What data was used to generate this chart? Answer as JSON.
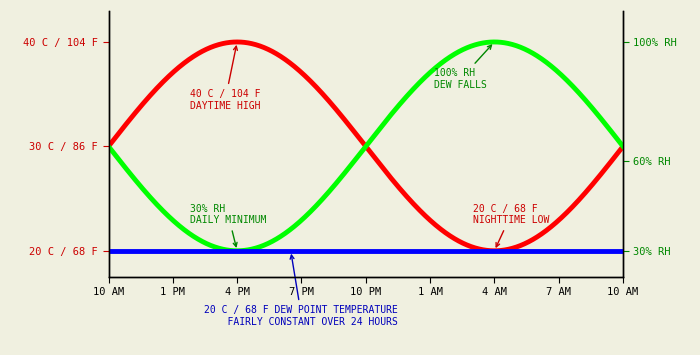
{
  "background_color": "#f0f0e0",
  "plot_bg_color": "#f0f0e0",
  "x_ticks_labels": [
    "10 AM",
    "1 PM",
    "4 PM",
    "7 PM",
    "10 PM",
    "1 AM",
    "4 AM",
    "7 AM",
    "10 AM"
  ],
  "left_yticks_labels": [
    "20 C / 68 F",
    "30 C / 86 F",
    "40 C / 104 F"
  ],
  "left_ytick_values": [
    20,
    30,
    40
  ],
  "right_yticks_labels": [
    "30% RH",
    "60% RH",
    "100% RH"
  ],
  "right_ytick_values": [
    30,
    60,
    100
  ],
  "temp_min": 20,
  "temp_max": 40,
  "temp_mid": 30,
  "rh_min": 30,
  "rh_max": 100,
  "dew_point": 20,
  "red_color": "#ff0000",
  "green_color": "#00ff00",
  "blue_color": "#0000ff",
  "annotation_red_color": "#cc0000",
  "annotation_green_color": "#008800",
  "annotation_blue_color": "#0000bb",
  "line_width": 3.5,
  "xtick_positions": [
    0,
    3,
    6,
    9,
    12,
    15,
    18,
    21,
    24
  ]
}
